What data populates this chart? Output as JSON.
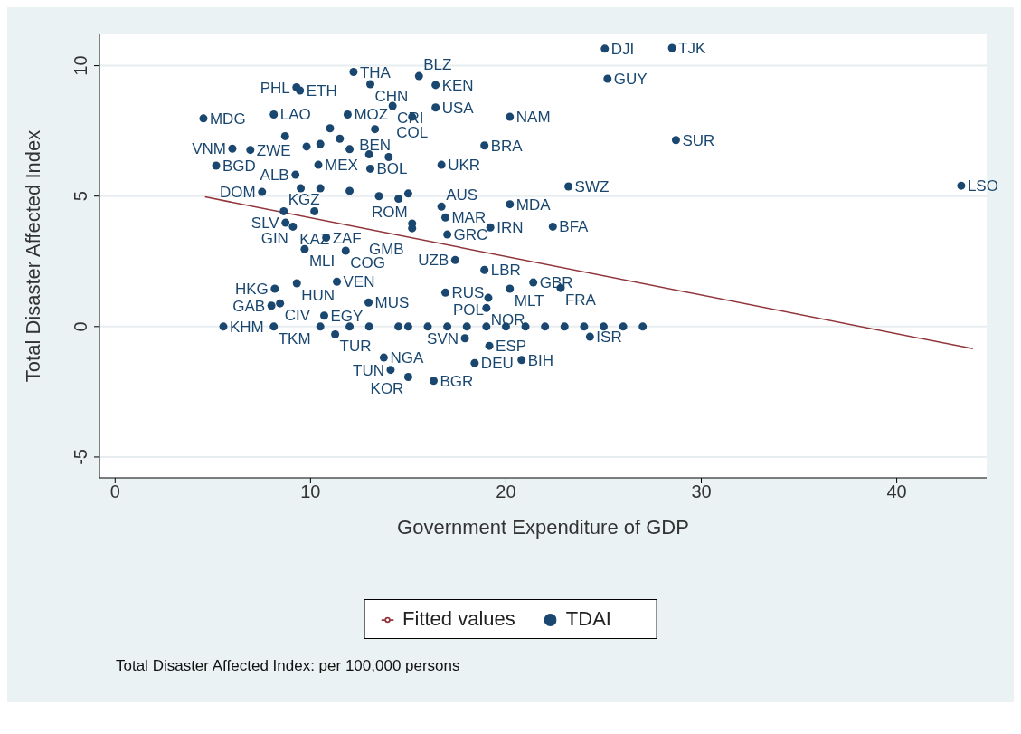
{
  "chart_data": {
    "type": "scatter",
    "xlabel": "Government Expenditure of GDP",
    "ylabel": "Total Disaster Affected Index",
    "xlim": [
      -0.8,
      44.6
    ],
    "ylim": [
      -5.8,
      11.2
    ],
    "xticks": [
      0,
      10,
      20,
      30,
      40
    ],
    "yticks": [
      -5,
      0,
      5,
      10
    ],
    "grid": "y",
    "legend": "bottom",
    "annotations": [
      "Total Disaster Affected Index: per 100,000 persons"
    ],
    "series": [
      {
        "name": "TDAI",
        "marker": "circle",
        "color": "#1a476f",
        "x": [
          25.06,
          28.5,
          25.2,
          20.2,
          28.7,
          23.2,
          43.3,
          20.2,
          22.4,
          12.2,
          15.55,
          13.06,
          16.4,
          9.28,
          9.46,
          4.52,
          8.12,
          11.9,
          14.2,
          16.4,
          15.2,
          13.3,
          6.0,
          6.92,
          5.17,
          10.4,
          13.06,
          16.7,
          18.9,
          9.23,
          7.52,
          8.63,
          10.2,
          8.72,
          9.1,
          10.8,
          9.7,
          11.8,
          17.4,
          18.9,
          15.2,
          16.9,
          15.2,
          17.0,
          19.2,
          16.7,
          9.3,
          11.35,
          8.17,
          12.97,
          16.9,
          20.2,
          21.4,
          22.8,
          19.1,
          19.0,
          8.44,
          8.0,
          10.7,
          5.54,
          8.12,
          11.26,
          24.3,
          17.9,
          19.15,
          13.75,
          14.1,
          15.0,
          16.3,
          18.4,
          20.8,
          10.5,
          12.0,
          13.0,
          14.5,
          15.0,
          16.0,
          17.0,
          18.0,
          19.0,
          20.0,
          21.0,
          22.0,
          23.0,
          24.0,
          25.0,
          26.0,
          27.0,
          10.5,
          12.0,
          13.5,
          14.5,
          15.0,
          9.5,
          11.0,
          11.5,
          10.5,
          12.0,
          13.0,
          14.0,
          9.8,
          8.7
        ],
        "values": [
          10.65,
          10.68,
          9.5,
          8.04,
          7.15,
          5.37,
          5.4,
          4.69,
          3.83,
          9.76,
          9.6,
          9.29,
          9.26,
          9.17,
          9.05,
          7.98,
          8.13,
          8.13,
          8.46,
          8.4,
          8.04,
          7.57,
          6.82,
          6.77,
          6.17,
          6.2,
          6.05,
          6.2,
          6.94,
          5.82,
          5.16,
          4.42,
          4.42,
          3.98,
          3.83,
          3.41,
          2.97,
          2.91,
          2.55,
          2.17,
          3.95,
          4.18,
          3.77,
          3.53,
          3.8,
          4.6,
          1.66,
          1.72,
          1.45,
          0.92,
          1.3,
          1.45,
          1.69,
          1.48,
          1.1,
          0.71,
          0.89,
          0.8,
          0.42,
          0,
          0,
          -0.3,
          -0.39,
          -0.45,
          -0.74,
          -1.19,
          -1.66,
          -1.93,
          -2.08,
          -1.4,
          -1.28,
          0,
          0,
          0,
          0,
          0,
          0,
          0,
          0,
          0,
          0,
          0,
          0,
          0,
          0,
          0,
          0,
          0,
          5.3,
          5.2,
          5.0,
          4.9,
          5.1,
          5.3,
          7.6,
          7.2,
          7.0,
          6.8,
          6.6,
          6.5,
          6.9,
          7.3
        ],
        "value_labels": [
          "DJI",
          "TJK",
          "GUY",
          "NAM",
          "SUR",
          "SWZ",
          "LSO",
          "MDA",
          "BFA",
          "THA",
          "BLZ",
          "CHN",
          "KEN",
          "PHL",
          "ETH",
          "MDG",
          "LAO",
          "MOZ",
          "CRI",
          "USA",
          "COL",
          "BEN",
          "VNM",
          "ZWE",
          "BGD",
          "MEX",
          "BOL",
          "UKR",
          "BRA",
          "ALB",
          "DOM",
          "KGZ",
          "KAZ",
          "SLV",
          "GIN",
          "ZAF",
          "MLI",
          "COG",
          "UZB",
          "LBR",
          "ROM",
          "MAR",
          "GMB",
          "GRC",
          "IRN",
          "AUS",
          "HUN",
          "VEN",
          "HKG",
          "MUS",
          "RUS",
          "MLT",
          "GBR",
          "FRA",
          "POL",
          "NOR",
          "CIV",
          "GAB",
          "EGY",
          "KHM",
          "TKM",
          "TUR",
          "ISR",
          "SVN",
          "ESP",
          "NGA",
          "TUN",
          "KOR",
          "BGR",
          "DEU",
          "BIH",
          null,
          null,
          null,
          null,
          null,
          null,
          null,
          null,
          null,
          null,
          null,
          null,
          null,
          null,
          null,
          null,
          null,
          null,
          null,
          null,
          null,
          null,
          null,
          null,
          null,
          null,
          null,
          null,
          null,
          null,
          null
        ]
      },
      {
        "name": "Fitted values",
        "type": "line",
        "color": "#90353b",
        "x": [
          4.6,
          43.9
        ],
        "values": [
          4.97,
          -0.85
        ]
      }
    ]
  }
}
